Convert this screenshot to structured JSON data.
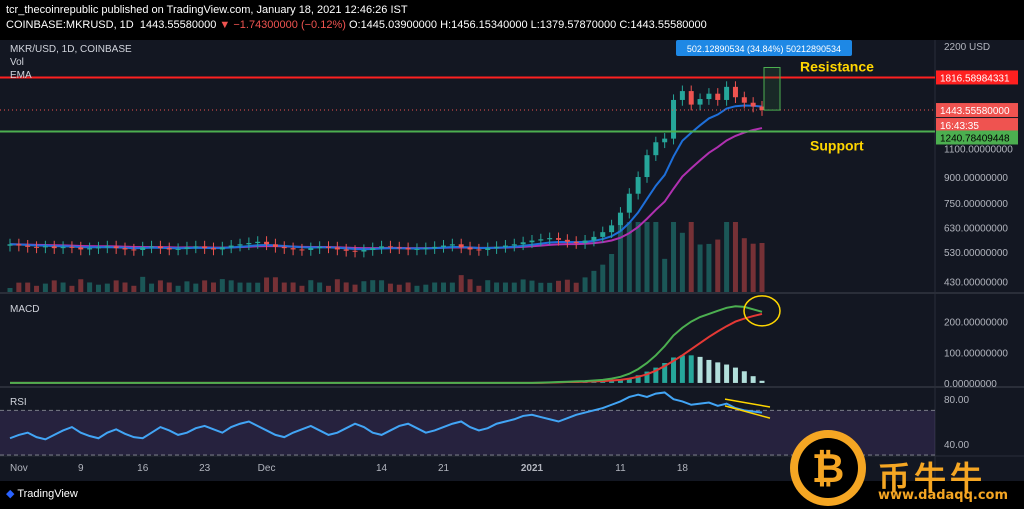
{
  "header": {
    "line1": "tcr_thecoinrepublic published on TradingView.com, January 18, 2021 12:46:26 IST",
    "symbol": "COINBASE:MKRUSD, 1D",
    "price": "1443.55580000",
    "change": "▼ −1.74300000 (−0.12%)",
    "ohlc": "O:1445.03900000 H:1456.15340000 L:1379.57870000 C:1443.55580000"
  },
  "legend": {
    "title": "MKR/USD, 1D, COINBASE",
    "vol": "Vol",
    "ema": "EMA"
  },
  "annotations": {
    "resistance": "Resistance",
    "support": "Support",
    "measure": "502.12890534 (34.84%) 50212890534"
  },
  "price_tags": {
    "resistance": "1816.58984331",
    "current": "1443.55580000",
    "countdown": "16:43:35",
    "support": "1240.78409448",
    "top": "2200 USD"
  },
  "price_axis": [
    "1100.00000000",
    "900.00000000",
    "750.00000000",
    "630.00000000",
    "530.00000000",
    "430.00000000"
  ],
  "macd": {
    "label": "MACD",
    "axis": [
      "200.00000000",
      "100.00000000",
      "0.00000000"
    ]
  },
  "rsi": {
    "label": "RSI",
    "axis": [
      "80.00",
      "40.00"
    ]
  },
  "x_axis": [
    "Nov",
    "9",
    "16",
    "23",
    "Dec",
    "14",
    "21",
    "2021",
    "11",
    "18"
  ],
  "footer": {
    "tradingview": "TradingView"
  },
  "watermark": {
    "brand": "币牛牛",
    "url": "www.dadaqq.com"
  },
  "colors": {
    "up": "#26a69a",
    "down": "#ef5350",
    "ema_fast": "#1e6fd9",
    "ema_slow": "#b030b0",
    "resistance": "#ff2020",
    "support": "#4caf50",
    "macd": "#4caf50",
    "signal": "#e53935",
    "rsi": "#42a5f5"
  },
  "chart_data": {
    "type": "candlestick",
    "ylabel": "USD",
    "price_lines": {
      "resistance": 1816.59,
      "support": 1240.78,
      "current": 1443.56
    },
    "closes": [
      560,
      555,
      550,
      548,
      552,
      545,
      550,
      548,
      540,
      545,
      548,
      552,
      545,
      540,
      538,
      548,
      552,
      545,
      540,
      542,
      548,
      552,
      545,
      540,
      548,
      555,
      560,
      565,
      570,
      560,
      550,
      545,
      540,
      538,
      545,
      550,
      548,
      540,
      535,
      532,
      538,
      545,
      552,
      548,
      545,
      540,
      542,
      545,
      550,
      555,
      560,
      548,
      540,
      538,
      545,
      550,
      555,
      560,
      568,
      575,
      580,
      585,
      578,
      570,
      565,
      575,
      590,
      610,
      640,
      700,
      800,
      900,
      1050,
      1150,
      1180,
      1550,
      1650,
      1500,
      1560,
      1620,
      1550,
      1700,
      1580,
      1520,
      1480,
      1443
    ],
    "macd_line": [
      0,
      0,
      0,
      0,
      0,
      0,
      0,
      0,
      0,
      0,
      0,
      0,
      0,
      0,
      0,
      0,
      0,
      0,
      0,
      0,
      0,
      0,
      0,
      0,
      0,
      0,
      0,
      0,
      0,
      0,
      0,
      0,
      0,
      0,
      0,
      0,
      0,
      0,
      0,
      0,
      0,
      0,
      0,
      0,
      0,
      0,
      0,
      0,
      0,
      0,
      0,
      0,
      0,
      0,
      0,
      0,
      0,
      0,
      0,
      0,
      1,
      2,
      3,
      4,
      5,
      6,
      8,
      10,
      14,
      20,
      30,
      45,
      65,
      90,
      120,
      155,
      180,
      200,
      215,
      225,
      235,
      245,
      250,
      248,
      240,
      232
    ],
    "signal_line": [
      0,
      0,
      0,
      0,
      0,
      0,
      0,
      0,
      0,
      0,
      0,
      0,
      0,
      0,
      0,
      0,
      0,
      0,
      0,
      0,
      0,
      0,
      0,
      0,
      0,
      0,
      0,
      0,
      0,
      0,
      0,
      0,
      0,
      0,
      0,
      0,
      0,
      0,
      0,
      0,
      0,
      0,
      0,
      0,
      0,
      0,
      0,
      0,
      0,
      0,
      0,
      0,
      0,
      0,
      0,
      0,
      0,
      0,
      0,
      0,
      0,
      1,
      2,
      3,
      3,
      4,
      5,
      6,
      8,
      10,
      14,
      20,
      28,
      40,
      55,
      72,
      90,
      110,
      130,
      150,
      168,
      185,
      200,
      210,
      218,
      225
    ],
    "rsi": [
      45,
      48,
      50,
      46,
      44,
      48,
      52,
      55,
      50,
      47,
      45,
      50,
      53,
      49,
      46,
      45,
      50,
      55,
      52,
      48,
      50,
      54,
      56,
      53,
      50,
      55,
      58,
      60,
      56,
      52,
      48,
      46,
      50,
      53,
      56,
      52,
      48,
      50,
      54,
      58,
      55,
      50,
      48,
      52,
      56,
      58,
      54,
      50,
      52,
      55,
      58,
      60,
      55,
      52,
      54,
      58,
      60,
      62,
      65,
      66,
      64,
      62,
      60,
      63,
      66,
      68,
      70,
      72,
      75,
      78,
      82,
      84,
      82,
      85,
      86,
      80,
      78,
      75,
      76,
      77,
      74,
      76,
      72,
      70,
      69,
      68
    ]
  }
}
